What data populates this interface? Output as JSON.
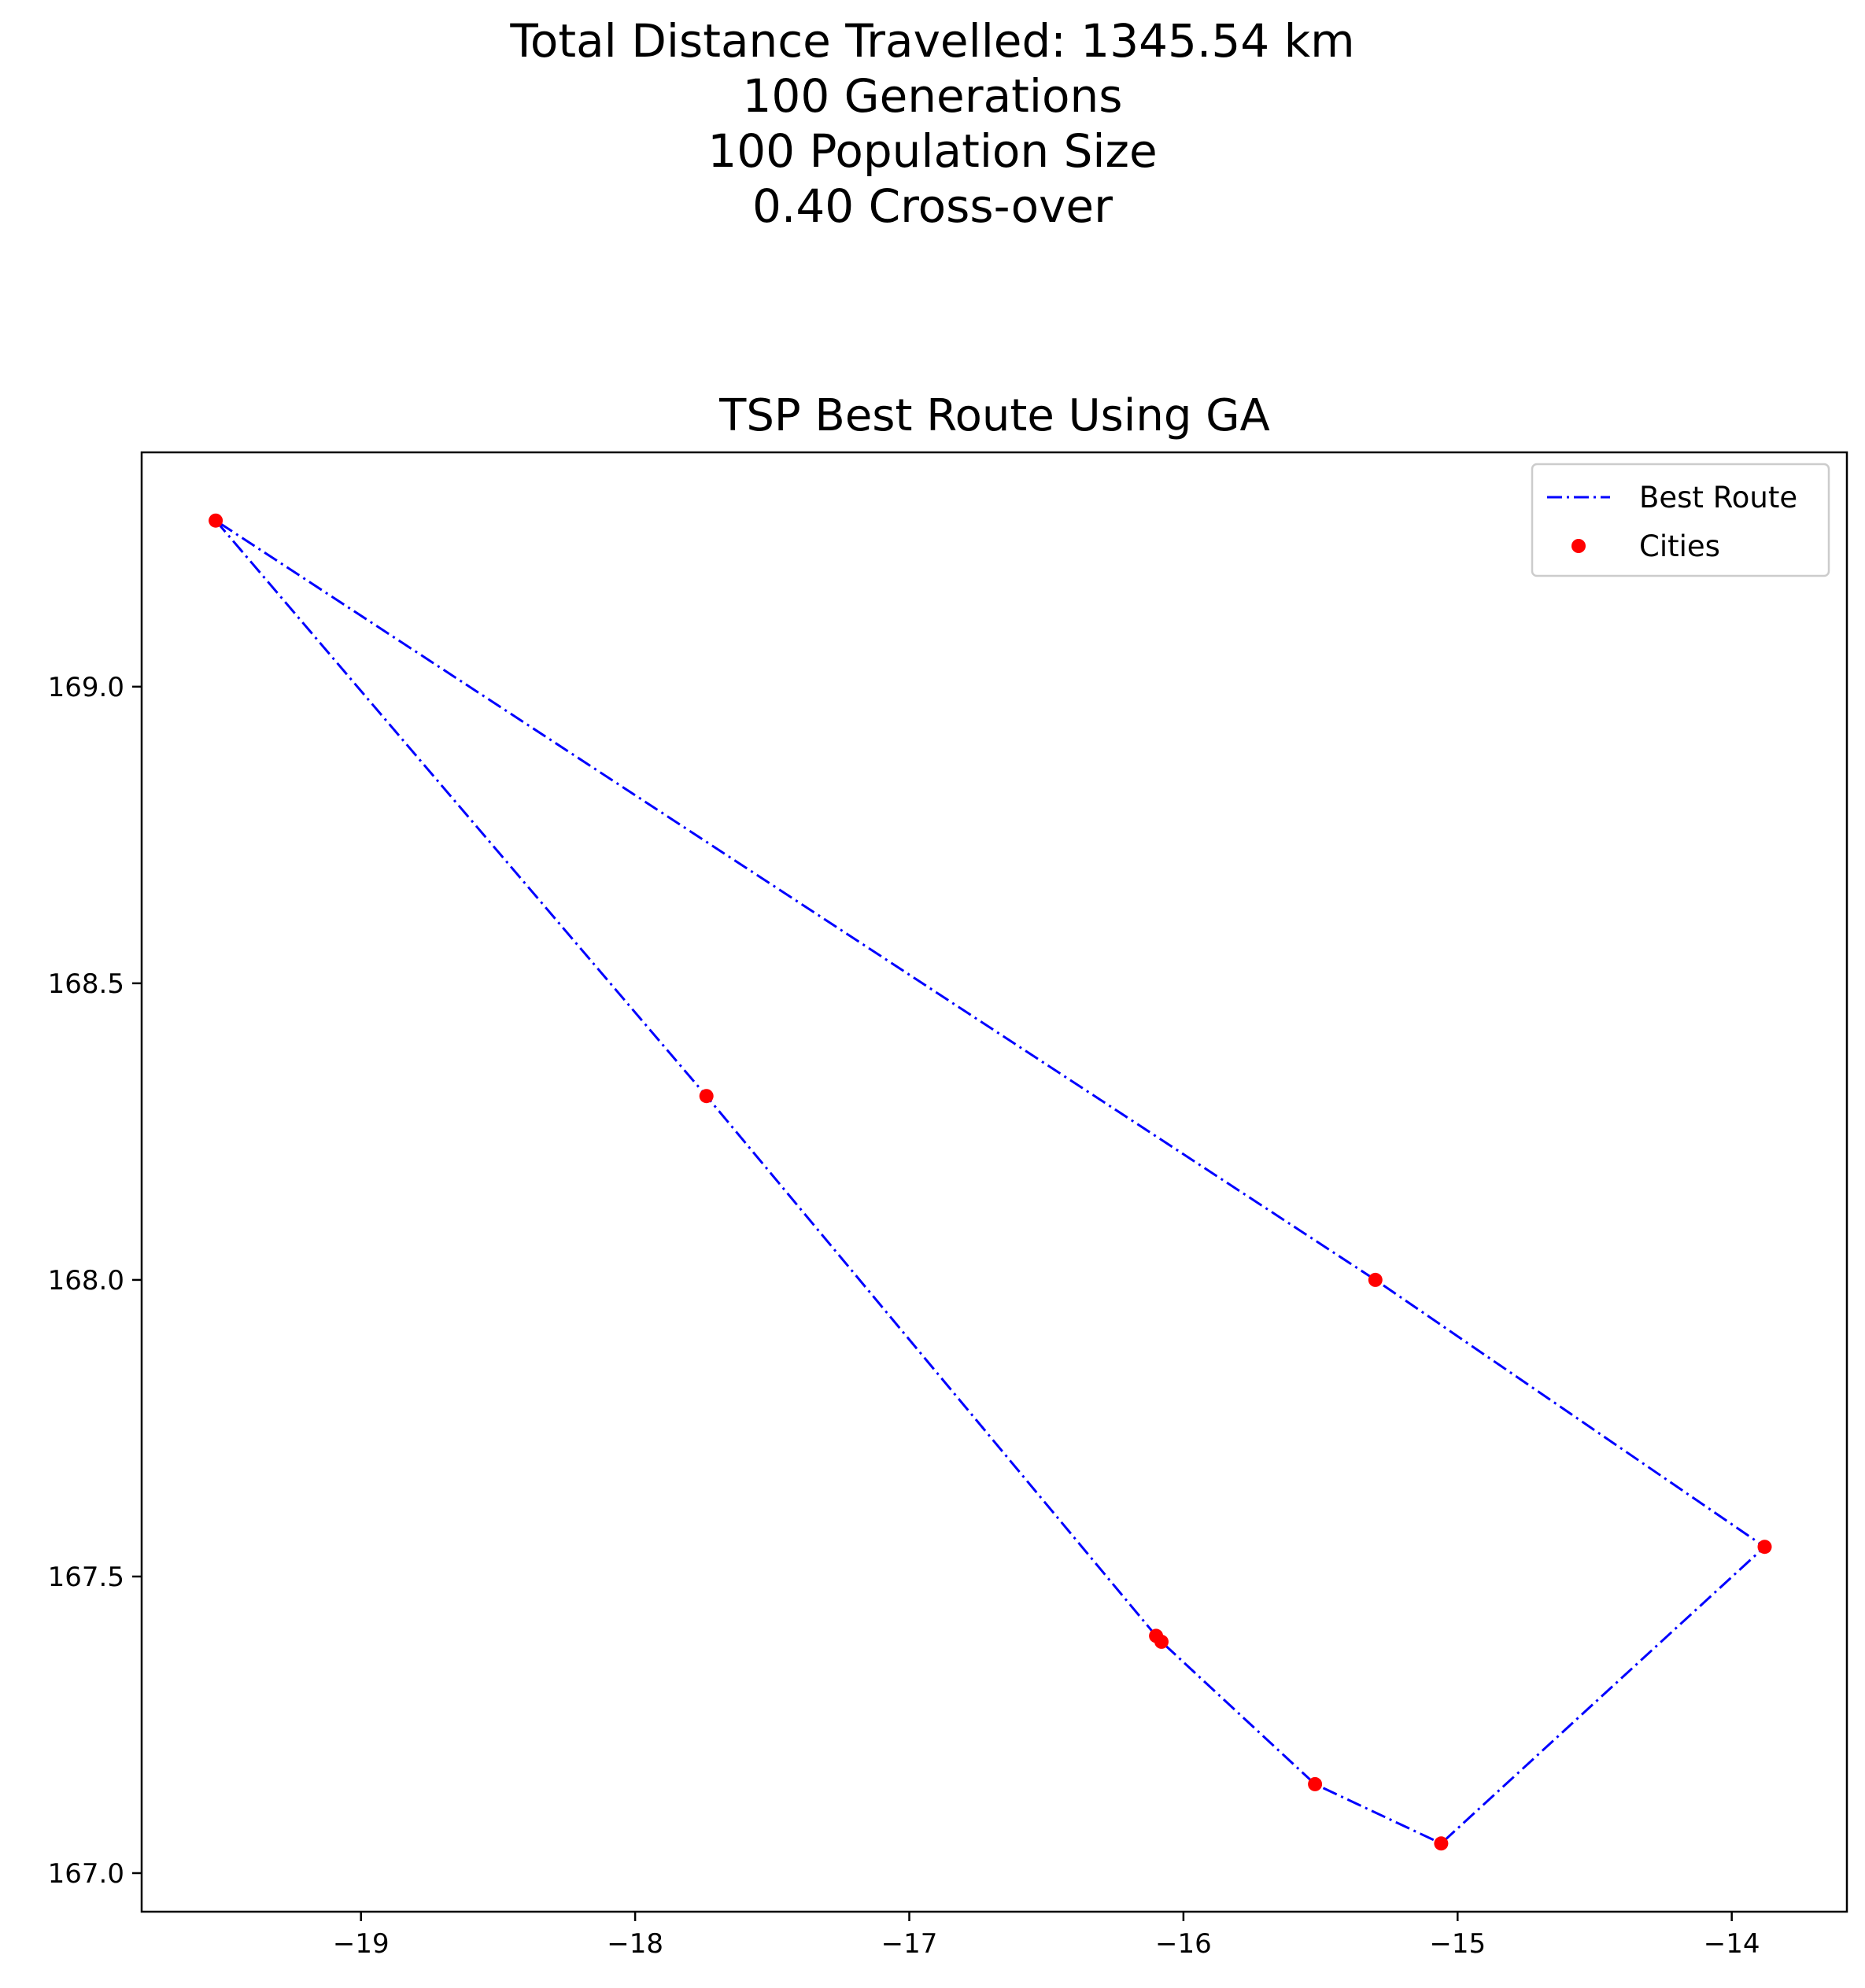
{
  "figure": {
    "suptitle_lines": [
      "Total Distance Travelled: 1345.54 km",
      "100 Generations",
      "100 Population Size",
      "0.40 Cross-over"
    ]
  },
  "chart_data": {
    "type": "line",
    "title": "TSP Best Route Using GA",
    "xlabel": "",
    "ylabel": "",
    "xlim": [
      -19.8,
      -13.58
    ],
    "ylim": [
      166.935,
      169.395
    ],
    "xticks": [
      -19,
      -18,
      -17,
      -16,
      -15,
      -14
    ],
    "xtick_labels": [
      "−19",
      "−18",
      "−17",
      "−16",
      "−15",
      "−14"
    ],
    "yticks": [
      167.0,
      167.5,
      168.0,
      168.5,
      169.0
    ],
    "ytick_labels": [
      "167.0",
      "167.5",
      "168.0",
      "168.5",
      "169.0"
    ],
    "grid": false,
    "legend_position": "top-right",
    "series": [
      {
        "name": "Best Route",
        "kind": "line",
        "style": "dash-dot",
        "color": "#0000ff",
        "points": [
          {
            "x": -19.53,
            "y": 169.28
          },
          {
            "x": -17.74,
            "y": 168.31
          },
          {
            "x": -16.1,
            "y": 167.4
          },
          {
            "x": -16.08,
            "y": 167.39
          },
          {
            "x": -15.52,
            "y": 167.15
          },
          {
            "x": -15.06,
            "y": 167.05
          },
          {
            "x": -13.88,
            "y": 167.55
          },
          {
            "x": -15.3,
            "y": 168.0
          },
          {
            "x": -19.53,
            "y": 169.28
          }
        ]
      },
      {
        "name": "Cities",
        "kind": "scatter",
        "color": "#ff0000",
        "points": [
          {
            "x": -19.53,
            "y": 169.28
          },
          {
            "x": -17.74,
            "y": 168.31
          },
          {
            "x": -16.1,
            "y": 167.4
          },
          {
            "x": -16.08,
            "y": 167.39
          },
          {
            "x": -15.52,
            "y": 167.15
          },
          {
            "x": -15.06,
            "y": 167.05
          },
          {
            "x": -13.88,
            "y": 167.55
          },
          {
            "x": -15.3,
            "y": 168.0
          }
        ]
      }
    ]
  }
}
